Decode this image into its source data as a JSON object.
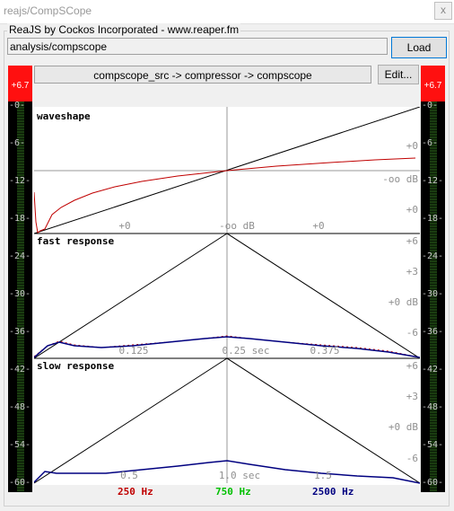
{
  "window": {
    "title": "reajs/CompSCope",
    "close": "x"
  },
  "header": {
    "group_label": "ReaJS by Cockos Incorporated - www.reaper.fm",
    "path": "analysis/compscope",
    "load_label": "Load"
  },
  "chain": {
    "text": "compscope_src -> compressor -> compscope",
    "edit_label": "Edit..."
  },
  "meters": {
    "peak_left": "+6.7",
    "peak_right": "+6.7",
    "ticks": [
      "-0-",
      "-6-",
      "-12-",
      "-18-",
      "-24-",
      "-30-",
      "-36-",
      "-42-",
      "-48-",
      "-54-",
      "-60-"
    ]
  },
  "scope": {
    "waveshape": {
      "title": "waveshape",
      "right_labels": [
        "+0",
        "-oo dB",
        "+0"
      ],
      "bottom_labels": [
        "+0",
        "-oo dB",
        "+0"
      ]
    },
    "fast": {
      "title": "fast response",
      "right_labels": [
        "+6",
        "+3",
        "+0 dB",
        "-6"
      ],
      "bottom_labels": [
        "0.125",
        "0.25 sec",
        "0.375"
      ]
    },
    "slow": {
      "title": "slow response",
      "right_labels": [
        "+6",
        "+3",
        "+0 dB",
        "-6"
      ],
      "bottom_labels": [
        "0.5",
        "1.0 sec",
        "1.5"
      ]
    }
  },
  "legend": [
    {
      "label": "250 Hz",
      "color": "#c00000"
    },
    {
      "label": "750 Hz",
      "color": "#00c000"
    },
    {
      "label": "2500 Hz",
      "color": "#000080"
    }
  ]
}
